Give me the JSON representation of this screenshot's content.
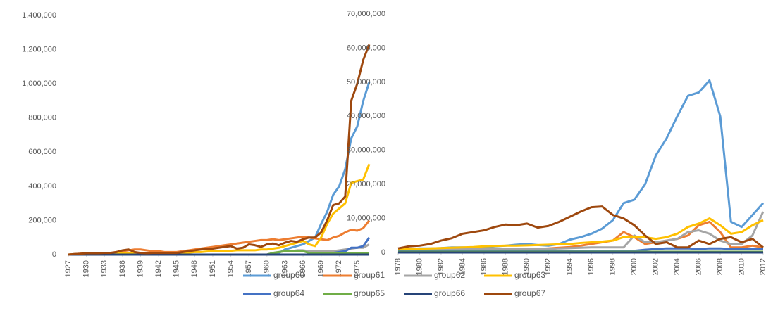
{
  "chart_data": [
    {
      "type": "line",
      "x": [
        1927,
        1928,
        1929,
        1930,
        1931,
        1932,
        1933,
        1934,
        1935,
        1936,
        1937,
        1938,
        1939,
        1940,
        1941,
        1942,
        1943,
        1944,
        1945,
        1946,
        1947,
        1948,
        1949,
        1950,
        1951,
        1952,
        1953,
        1954,
        1955,
        1956,
        1957,
        1958,
        1959,
        1960,
        1961,
        1962,
        1963,
        1964,
        1965,
        1966,
        1967,
        1968,
        1969,
        1970,
        1971,
        1972,
        1973,
        1974,
        1975,
        1976,
        1977
      ],
      "xlim": [
        1927,
        1977
      ],
      "xticks": [
        1927,
        1930,
        1933,
        1936,
        1939,
        1942,
        1945,
        1948,
        1951,
        1954,
        1957,
        1960,
        1963,
        1966,
        1969,
        1972,
        1975
      ],
      "ylim": [
        0,
        1400000
      ],
      "yticks": [
        0,
        {
          "value": 200000,
          "label": "200,000"
        },
        {
          "value": 400000,
          "label": "400,000"
        },
        {
          "value": 600000,
          "label": "600,000"
        },
        {
          "value": 800000,
          "label": "800,000"
        },
        {
          "value": 1000000,
          "label": "1,000,000"
        },
        {
          "value": 1200000,
          "label": "1,200,000"
        },
        {
          "value": 1400000,
          "label": "1,400,000"
        }
      ],
      "grid": false,
      "series": [
        {
          "name": "group60",
          "color": "#5b9bd5",
          "values": [
            0,
            0,
            0,
            0,
            0,
            0,
            0,
            0,
            0,
            0,
            0,
            0,
            0,
            0,
            0,
            0,
            0,
            0,
            0,
            0,
            0,
            0,
            0,
            0,
            0,
            0,
            0,
            0,
            0,
            0,
            0,
            0,
            0,
            0,
            5000,
            10000,
            30000,
            40000,
            50000,
            60000,
            80000,
            100000,
            180000,
            250000,
            350000,
            400000,
            500000,
            680000,
            750000,
            900000,
            1010000
          ]
        },
        {
          "name": "group61",
          "color": "#ed7d31",
          "values": [
            0,
            3000,
            5000,
            8000,
            8000,
            10000,
            10000,
            10000,
            15000,
            20000,
            25000,
            30000,
            30000,
            25000,
            20000,
            20000,
            15000,
            15000,
            15000,
            20000,
            25000,
            30000,
            35000,
            40000,
            45000,
            50000,
            55000,
            60000,
            65000,
            70000,
            75000,
            80000,
            85000,
            85000,
            90000,
            85000,
            90000,
            95000,
            100000,
            105000,
            100000,
            95000,
            90000,
            85000,
            100000,
            110000,
            130000,
            145000,
            140000,
            155000,
            200000
          ]
        },
        {
          "name": "group62",
          "color": "#a5a5a5",
          "values": [
            0,
            0,
            0,
            0,
            0,
            0,
            0,
            0,
            0,
            0,
            0,
            0,
            0,
            0,
            0,
            0,
            0,
            0,
            0,
            0,
            0,
            0,
            0,
            0,
            0,
            0,
            0,
            0,
            0,
            0,
            0,
            0,
            0,
            0,
            10000,
            15000,
            20000,
            20000,
            25000,
            25000,
            20000,
            20000,
            20000,
            20000,
            20000,
            25000,
            30000,
            35000,
            40000,
            40000,
            60000
          ]
        },
        {
          "name": "group63",
          "color": "#ffc000",
          "values": [
            0,
            2000,
            3000,
            5000,
            5000,
            5000,
            5000,
            5000,
            8000,
            10000,
            10000,
            10000,
            10000,
            8000,
            8000,
            8000,
            8000,
            8000,
            8000,
            10000,
            12000,
            15000,
            15000,
            18000,
            20000,
            20000,
            22000,
            22000,
            25000,
            25000,
            25000,
            25000,
            30000,
            30000,
            35000,
            40000,
            50000,
            60000,
            70000,
            80000,
            60000,
            50000,
            100000,
            180000,
            240000,
            270000,
            300000,
            420000,
            430000,
            440000,
            530000
          ]
        },
        {
          "name": "group64",
          "color": "#4472c4",
          "values": [
            0,
            0,
            0,
            0,
            0,
            0,
            0,
            0,
            0,
            0,
            0,
            0,
            0,
            0,
            0,
            0,
            0,
            0,
            0,
            0,
            0,
            0,
            0,
            0,
            0,
            0,
            0,
            0,
            0,
            0,
            0,
            0,
            0,
            0,
            0,
            0,
            0,
            0,
            0,
            0,
            0,
            0,
            0,
            5000,
            10000,
            15000,
            20000,
            40000,
            40000,
            50000,
            100000
          ]
        },
        {
          "name": "group65",
          "color": "#70ad47",
          "values": [
            0,
            0,
            0,
            0,
            0,
            0,
            0,
            0,
            0,
            0,
            0,
            0,
            0,
            0,
            0,
            0,
            0,
            0,
            0,
            0,
            0,
            0,
            0,
            0,
            0,
            0,
            0,
            0,
            0,
            0,
            0,
            0,
            0,
            0,
            10000,
            15000,
            20000,
            20000,
            20000,
            20000,
            10000,
            10000,
            10000,
            10000,
            10000,
            10000,
            10000,
            10000,
            10000,
            10000,
            10000
          ]
        },
        {
          "name": "group66",
          "color": "#264478",
          "values": [
            0,
            0,
            0,
            0,
            0,
            0,
            0,
            0,
            0,
            0,
            0,
            0,
            0,
            0,
            0,
            0,
            0,
            0,
            0,
            0,
            0,
            0,
            0,
            0,
            0,
            0,
            0,
            0,
            0,
            0,
            0,
            0,
            0,
            0,
            0,
            0,
            0,
            0,
            0,
            0,
            0,
            0,
            0,
            0,
            0,
            0,
            0,
            0,
            0,
            0,
            0
          ]
        },
        {
          "name": "group67",
          "color": "#9e480e",
          "values": [
            0,
            3000,
            5000,
            8000,
            8000,
            8000,
            10000,
            10000,
            15000,
            25000,
            30000,
            15000,
            10000,
            8000,
            10000,
            10000,
            10000,
            10000,
            10000,
            15000,
            20000,
            25000,
            30000,
            35000,
            35000,
            40000,
            45000,
            50000,
            35000,
            40000,
            60000,
            55000,
            45000,
            60000,
            65000,
            55000,
            70000,
            80000,
            75000,
            90000,
            100000,
            100000,
            130000,
            200000,
            290000,
            300000,
            340000,
            900000,
            1000000,
            1140000,
            1230000
          ]
        }
      ]
    },
    {
      "type": "line",
      "x": [
        1978,
        1979,
        1980,
        1981,
        1982,
        1983,
        1984,
        1985,
        1986,
        1987,
        1988,
        1989,
        1990,
        1991,
        1992,
        1993,
        1994,
        1995,
        1996,
        1997,
        1998,
        1999,
        2000,
        2001,
        2002,
        2003,
        2004,
        2005,
        2006,
        2007,
        2008,
        2009,
        2010,
        2011,
        2012
      ],
      "xlim": [
        1978,
        2012
      ],
      "xticks": [
        1978,
        1980,
        1982,
        1984,
        1986,
        1988,
        1990,
        1992,
        1994,
        1996,
        1998,
        2000,
        2002,
        2004,
        2006,
        2008,
        2010,
        2012
      ],
      "ylim": [
        0,
        70000000
      ],
      "yticks": [
        0,
        {
          "value": 10000000,
          "label": "10,000,000"
        },
        {
          "value": 20000000,
          "label": "20,000,000"
        },
        {
          "value": 30000000,
          "label": "30,000,000"
        },
        {
          "value": 40000000,
          "label": "40,000,000"
        },
        {
          "value": 50000000,
          "label": "50,000,000"
        },
        {
          "value": 60000000,
          "label": "60,000,000"
        },
        {
          "value": 70000000,
          "label": "70,000,000"
        }
      ],
      "grid": false,
      "series": [
        {
          "name": "group60",
          "color": "#5b9bd5",
          "values": [
            1000000,
            1000000,
            1200000,
            1200000,
            1300000,
            1500000,
            1500000,
            1400000,
            1500000,
            1800000,
            2000000,
            2300000,
            2500000,
            2200000,
            2000000,
            2500000,
            3800000,
            4500000,
            5500000,
            7000000,
            9500000,
            14500000,
            15500000,
            20000000,
            28500000,
            33500000,
            40000000,
            46000000,
            47000000,
            50500000,
            40000000,
            9000000,
            7500000,
            11000000,
            14500000
          ]
        },
        {
          "name": "group61",
          "color": "#ed7d31",
          "values": [
            500000,
            500000,
            600000,
            600000,
            700000,
            700000,
            800000,
            800000,
            800000,
            900000,
            900000,
            1000000,
            1000000,
            1000000,
            1200000,
            1400000,
            1600000,
            2000000,
            2500000,
            3000000,
            3500000,
            6000000,
            4500000,
            2500000,
            3000000,
            3500000,
            4000000,
            5000000,
            8000000,
            9000000,
            6000000,
            1500000,
            1500000,
            2000000,
            1500000
          ]
        },
        {
          "name": "group62",
          "color": "#a5a5a5",
          "values": [
            1000000,
            1000000,
            1000000,
            1000000,
            1000000,
            1000000,
            1000000,
            1000000,
            1000000,
            1000000,
            1000000,
            1000000,
            1000000,
            1000000,
            1000000,
            1200000,
            1300000,
            1400000,
            1500000,
            1500000,
            1500000,
            1500000,
            5000000,
            3000000,
            3000000,
            3500000,
            4000000,
            6000000,
            6500000,
            5500000,
            3500000,
            2500000,
            2500000,
            5000000,
            12000000
          ]
        },
        {
          "name": "group63",
          "color": "#ffc000",
          "values": [
            1000000,
            1000000,
            1100000,
            1200000,
            1300000,
            1400000,
            1500000,
            1600000,
            1800000,
            1900000,
            2000000,
            2000000,
            2100000,
            2200000,
            2300000,
            2400000,
            2500000,
            2800000,
            3000000,
            3200000,
            3500000,
            4500000,
            4500000,
            4500000,
            4000000,
            4500000,
            5500000,
            7500000,
            8500000,
            10000000,
            8000000,
            5500000,
            6000000,
            8000000,
            9500000
          ]
        },
        {
          "name": "group64",
          "color": "#4472c4",
          "values": [
            300000,
            300000,
            300000,
            300000,
            300000,
            300000,
            300000,
            300000,
            300000,
            300000,
            300000,
            300000,
            300000,
            300000,
            300000,
            300000,
            300000,
            300000,
            300000,
            300000,
            300000,
            300000,
            500000,
            800000,
            1000000,
            1200000,
            1200000,
            1200000,
            1000000,
            1200000,
            1200000,
            1000000,
            1000000,
            1000000,
            1000000
          ]
        },
        {
          "name": "group65",
          "color": "#70ad47",
          "values": [
            200000,
            200000,
            200000,
            200000,
            200000,
            200000,
            200000,
            200000,
            200000,
            200000,
            200000,
            200000,
            200000,
            200000,
            200000,
            200000,
            200000,
            200000,
            200000,
            200000,
            200000,
            200000,
            200000,
            200000,
            200000,
            200000,
            200000,
            200000,
            200000,
            200000,
            200000,
            200000,
            200000,
            200000,
            200000
          ]
        },
        {
          "name": "group66",
          "color": "#264478",
          "values": [
            0,
            0,
            0,
            0,
            0,
            0,
            0,
            0,
            0,
            0,
            0,
            0,
            0,
            0,
            0,
            0,
            0,
            0,
            0,
            0,
            0,
            0,
            0,
            0,
            0,
            0,
            0,
            0,
            0,
            0,
            0,
            0,
            0,
            0,
            0
          ]
        },
        {
          "name": "group67",
          "color": "#9e480e",
          "values": [
            1200000,
            1800000,
            2000000,
            2500000,
            3500000,
            4200000,
            5500000,
            6000000,
            6500000,
            7500000,
            8200000,
            8000000,
            8500000,
            7300000,
            7800000,
            9000000,
            10500000,
            12000000,
            13300000,
            13500000,
            11000000,
            10000000,
            8000000,
            5000000,
            2500000,
            3000000,
            1500000,
            1500000,
            3500000,
            2500000,
            4000000,
            4500000,
            3000000,
            4000000,
            1500000
          ]
        }
      ]
    }
  ]
}
